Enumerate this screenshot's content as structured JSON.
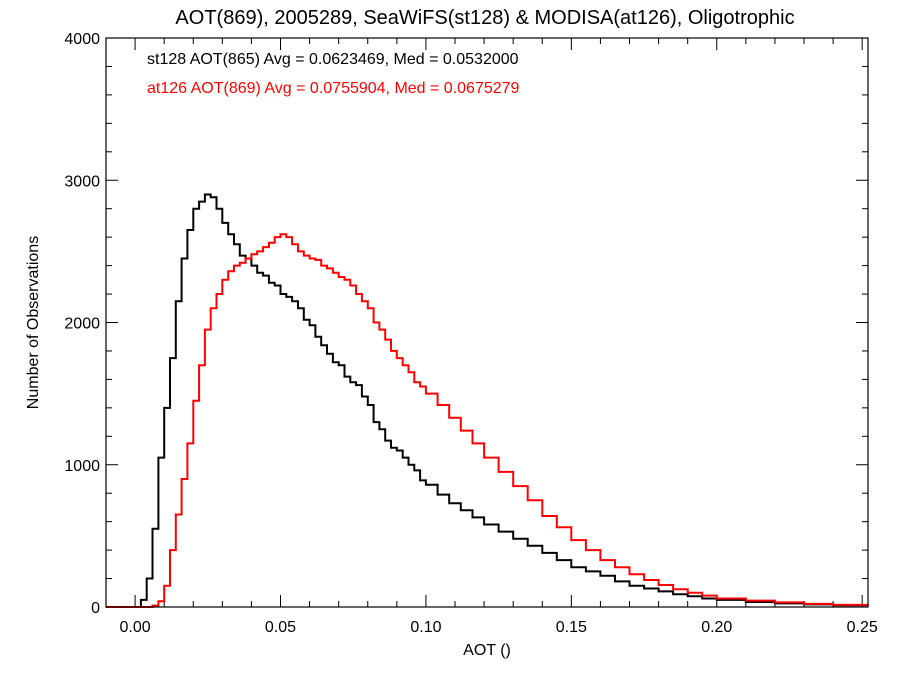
{
  "chart_data": {
    "type": "line",
    "title": "AOT(869), 2005289, SeaWiFS(st128) & MODISA(at126), Oligotrophic",
    "xlabel": "AOT ()",
    "ylabel": "Number of Observations",
    "xlim": [
      -0.01,
      0.252
    ],
    "ylim": [
      0,
      4000
    ],
    "x_ticks": [
      0.0,
      0.05,
      0.1,
      0.15,
      0.2,
      0.25
    ],
    "x_tick_labels": [
      "0.00",
      "0.05",
      "0.10",
      "0.15",
      "0.20",
      "0.25"
    ],
    "y_ticks": [
      0,
      1000,
      2000,
      3000,
      4000
    ],
    "y_tick_labels": [
      "0",
      "1000",
      "2000",
      "3000",
      "4000"
    ],
    "grid": false,
    "step": true,
    "series": [
      {
        "name": "st128",
        "color": "#000000",
        "annotation": "st128 AOT(865) Avg = 0.0623469, Med = 0.0532000",
        "x": [
          -0.01,
          0.0,
          0.002,
          0.004,
          0.006,
          0.008,
          0.01,
          0.012,
          0.014,
          0.016,
          0.018,
          0.02,
          0.022,
          0.024,
          0.026,
          0.028,
          0.03,
          0.032,
          0.034,
          0.036,
          0.038,
          0.04,
          0.042,
          0.044,
          0.046,
          0.048,
          0.05,
          0.052,
          0.054,
          0.056,
          0.058,
          0.06,
          0.062,
          0.064,
          0.066,
          0.068,
          0.07,
          0.072,
          0.074,
          0.076,
          0.078,
          0.08,
          0.082,
          0.084,
          0.086,
          0.088,
          0.09,
          0.092,
          0.094,
          0.096,
          0.098,
          0.1,
          0.104,
          0.108,
          0.112,
          0.116,
          0.12,
          0.125,
          0.13,
          0.135,
          0.14,
          0.145,
          0.15,
          0.155,
          0.16,
          0.165,
          0.17,
          0.175,
          0.18,
          0.185,
          0.19,
          0.195,
          0.2,
          0.21,
          0.22,
          0.23,
          0.24,
          0.252
        ],
        "values": [
          0,
          0,
          50,
          200,
          550,
          1050,
          1400,
          1750,
          2150,
          2450,
          2650,
          2800,
          2850,
          2900,
          2880,
          2800,
          2700,
          2620,
          2550,
          2470,
          2450,
          2400,
          2350,
          2330,
          2280,
          2260,
          2200,
          2180,
          2150,
          2100,
          2020,
          1980,
          1900,
          1840,
          1780,
          1720,
          1700,
          1620,
          1580,
          1560,
          1480,
          1420,
          1300,
          1250,
          1170,
          1120,
          1100,
          1050,
          1000,
          960,
          890,
          860,
          790,
          730,
          680,
          630,
          580,
          530,
          480,
          430,
          380,
          330,
          280,
          250,
          220,
          180,
          150,
          130,
          110,
          90,
          75,
          60,
          50,
          35,
          25,
          18,
          12,
          8
        ]
      },
      {
        "name": "at126",
        "color": "#ff0000",
        "annotation": "at126 AOT(869) Avg = 0.0755904, Med = 0.0675279",
        "x": [
          -0.01,
          0.0,
          0.002,
          0.004,
          0.006,
          0.008,
          0.01,
          0.012,
          0.014,
          0.016,
          0.018,
          0.02,
          0.022,
          0.024,
          0.026,
          0.028,
          0.03,
          0.032,
          0.034,
          0.036,
          0.038,
          0.04,
          0.042,
          0.044,
          0.046,
          0.048,
          0.05,
          0.052,
          0.054,
          0.056,
          0.058,
          0.06,
          0.062,
          0.064,
          0.066,
          0.068,
          0.07,
          0.072,
          0.074,
          0.076,
          0.078,
          0.08,
          0.082,
          0.084,
          0.086,
          0.088,
          0.09,
          0.092,
          0.094,
          0.096,
          0.098,
          0.1,
          0.104,
          0.108,
          0.112,
          0.116,
          0.12,
          0.125,
          0.13,
          0.135,
          0.14,
          0.145,
          0.15,
          0.155,
          0.16,
          0.165,
          0.17,
          0.175,
          0.18,
          0.185,
          0.19,
          0.195,
          0.2,
          0.21,
          0.22,
          0.23,
          0.24,
          0.252
        ],
        "values": [
          0,
          0,
          0,
          0,
          10,
          40,
          150,
          400,
          650,
          900,
          1150,
          1450,
          1700,
          1950,
          2100,
          2200,
          2300,
          2360,
          2400,
          2420,
          2450,
          2480,
          2500,
          2530,
          2560,
          2600,
          2620,
          2600,
          2550,
          2500,
          2470,
          2450,
          2440,
          2400,
          2380,
          2350,
          2320,
          2300,
          2260,
          2200,
          2150,
          2100,
          2000,
          1950,
          1880,
          1800,
          1750,
          1700,
          1650,
          1580,
          1550,
          1500,
          1420,
          1330,
          1240,
          1150,
          1050,
          950,
          850,
          750,
          640,
          560,
          470,
          400,
          330,
          280,
          230,
          190,
          155,
          125,
          100,
          80,
          60,
          45,
          32,
          22,
          15,
          10
        ]
      }
    ]
  }
}
